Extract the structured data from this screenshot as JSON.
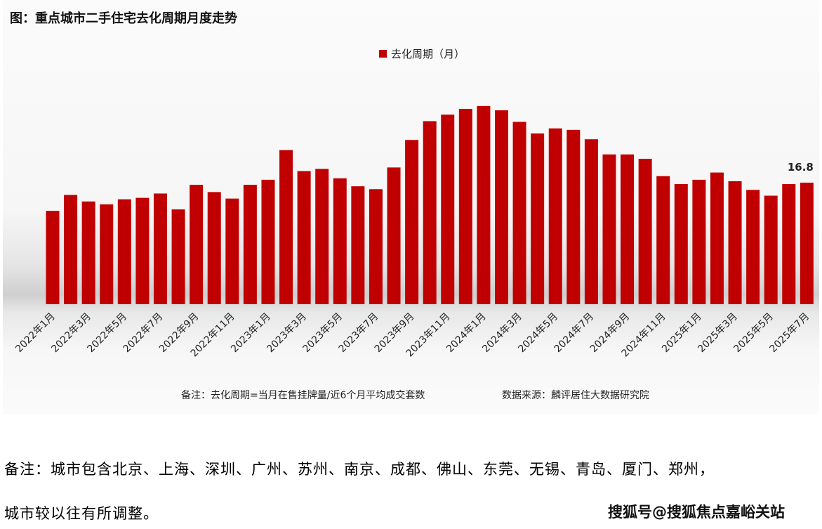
{
  "title": "图：重点城市二手住宅去化周期月度走势",
  "note": "备注：去化周期=当月在售挂牌量/近6个月平均成交套数",
  "source": "数据来源：麟评居住大数据研究院",
  "footnote_line1": "备注：城市包含北京、上海、深圳、广州、苏州、南京、成都、佛山、东莞、无锡、青岛、厦门、郑州，",
  "footnote_line2": "城市较以往有所调整。",
  "watermark": "搜狐号@搜狐焦点嘉峪关站",
  "chart_data": {
    "type": "bar",
    "title": "图：重点城市二手住宅去化周期月度走势",
    "legend": {
      "position": "top-center",
      "entries": [
        "去化周期（月）"
      ]
    },
    "series": [
      {
        "name": "去化周期（月）",
        "color": "#c00000",
        "values": [
          12.9,
          15.1,
          14.2,
          13.8,
          14.5,
          14.7,
          15.3,
          13.1,
          16.5,
          15.5,
          14.6,
          16.5,
          17.2,
          21.3,
          18.4,
          18.7,
          17.4,
          16.3,
          15.9,
          18.9,
          22.7,
          25.3,
          26.2,
          27.0,
          27.4,
          26.8,
          25.2,
          23.6,
          24.3,
          24.1,
          22.8,
          20.7,
          20.7,
          20.1,
          17.7,
          16.6,
          17.2,
          18.2,
          17.0,
          15.8,
          15.0,
          16.6,
          16.8
        ]
      }
    ],
    "categories": [
      "2022年1月",
      "2022年2月",
      "2022年3月",
      "2022年4月",
      "2022年5月",
      "2022年6月",
      "2022年7月",
      "2022年8月",
      "2022年9月",
      "2022年10月",
      "2022年11月",
      "2022年12月",
      "2023年1月",
      "2023年2月",
      "2023年3月",
      "2023年4月",
      "2023年5月",
      "2023年6月",
      "2023年7月",
      "2023年8月",
      "2023年9月",
      "2023年10月",
      "2023年11月",
      "2023年12月",
      "2024年1月",
      "2024年2月",
      "2024年3月",
      "2024年4月",
      "2024年5月",
      "2024年6月",
      "2024年7月",
      "2024年8月",
      "2024年9月",
      "2024年10月",
      "2024年11月",
      "2024年12月",
      "2025年1月",
      "2025年2月",
      "2025年3月",
      "2025年4月",
      "2025年5月",
      "2025年6月",
      "2025年7月"
    ],
    "tick_labels_shown_every": 2,
    "data_labels": [
      {
        "index": 42,
        "text": "16.8"
      }
    ],
    "ylim": [
      0,
      30
    ],
    "y_axis_visible": false,
    "grid": false
  }
}
